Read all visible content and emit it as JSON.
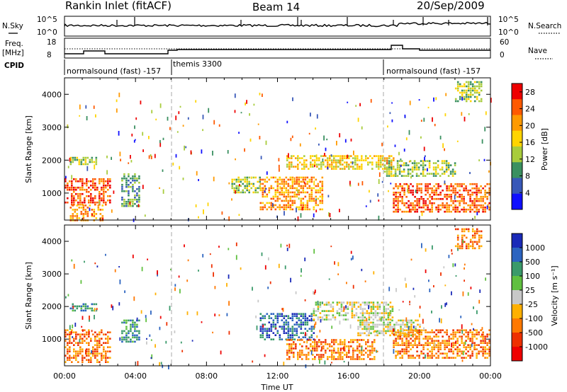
{
  "header": {
    "station": "Rankin Inlet (fitACF)",
    "beam": "Beam 14",
    "date": "20/Sep/2009"
  },
  "strips": {
    "nsky": {
      "label": "N.Sky",
      "ticks": [
        "10^5",
        "10^0"
      ]
    },
    "nsearch": {
      "label": "N.Search",
      "ticks": [
        "10^5",
        "10^0"
      ]
    },
    "freq": {
      "label_line1": "Freq.",
      "label_line2": "[MHz]",
      "ticks": [
        "18",
        "8"
      ]
    },
    "nave": {
      "label": "Nave",
      "ticks": [
        "60",
        "0"
      ]
    },
    "cpid": {
      "label": "CPID",
      "segments": [
        "normalsound (fast) -157",
        "themis 3300",
        "normalsound (fast) -157"
      ]
    }
  },
  "panels": {
    "power": {
      "ylabel": "Slant Range [km]",
      "cbar_label": "Power [dB]"
    },
    "velocity": {
      "ylabel": "Slant Range [km]",
      "cbar_label": "Velocity [m s⁻¹]"
    }
  },
  "xaxis": {
    "label": "Time UT"
  },
  "chart_data": [
    {
      "type": "heatmap",
      "title": "Power",
      "x_ticks": [
        "00:00",
        "04:00",
        "08:00",
        "12:00",
        "16:00",
        "20:00",
        "00:00"
      ],
      "y_ticks": [
        "1000",
        "2000",
        "3000",
        "4000"
      ],
      "ylabel": "Slant Range [km]",
      "xlabel": "Time UT",
      "xlim_hours": [
        0,
        24
      ],
      "ylim_km": [
        180,
        4500
      ],
      "colorbar": {
        "label": "Power [dB]",
        "ticks": [
          "4",
          "8",
          "12",
          "16",
          "20",
          "24",
          "28"
        ],
        "range": [
          0,
          30
        ],
        "colors": [
          "#1010ff",
          "#3858b8",
          "#3a9060",
          "#a8cc3c",
          "#ffd400",
          "#ff9a00",
          "#ff5a00",
          "#ee0000"
        ]
      },
      "echo_regions": [
        {
          "t": [
            0.0,
            2.6
          ],
          "r": [
            650,
            1450
          ],
          "value": 24
        },
        {
          "t": [
            0.3,
            2.2
          ],
          "r": [
            180,
            650
          ],
          "value": 20
        },
        {
          "t": [
            3.2,
            4.2
          ],
          "r": [
            600,
            1600
          ],
          "value": 8
        },
        {
          "t": [
            0.3,
            1.8
          ],
          "r": [
            1850,
            2100
          ],
          "value": 12
        },
        {
          "t": [
            9.4,
            11.0
          ],
          "r": [
            1000,
            1500
          ],
          "value": 14
        },
        {
          "t": [
            11.0,
            14.5
          ],
          "r": [
            500,
            1500
          ],
          "value": 22
        },
        {
          "t": [
            12.5,
            18.5
          ],
          "r": [
            1750,
            2150
          ],
          "value": 16
        },
        {
          "t": [
            18.0,
            22.0
          ],
          "r": [
            1500,
            2000
          ],
          "value": 14
        },
        {
          "t": [
            18.5,
            24.0
          ],
          "r": [
            400,
            1300
          ],
          "value": 24
        },
        {
          "t": [
            22.0,
            23.5
          ],
          "r": [
            3800,
            4400
          ],
          "value": 14
        }
      ]
    },
    {
      "type": "heatmap",
      "title": "Velocity",
      "x_ticks": [
        "00:00",
        "04:00",
        "08:00",
        "12:00",
        "16:00",
        "20:00",
        "00:00"
      ],
      "y_ticks": [
        "1000",
        "2000",
        "3000",
        "4000"
      ],
      "ylabel": "Slant Range [km]",
      "xlabel": "Time UT",
      "xlim_hours": [
        0,
        24
      ],
      "ylim_km": [
        180,
        4500
      ],
      "colorbar": {
        "label": "Velocity [m s⁻¹]",
        "ticks": [
          "1000",
          "500",
          "100",
          "25",
          "-25",
          "-100",
          "-500",
          "-1000"
        ],
        "colors": [
          "#1a2ab8",
          "#2c64c0",
          "#3a9a6a",
          "#60c040",
          "#c8c8c8",
          "#ffb000",
          "#ff7800",
          "#ee3000",
          "#ee0000"
        ]
      },
      "echo_regions": [
        {
          "t": [
            0.0,
            2.6
          ],
          "r": [
            300,
            1300
          ],
          "value": -250
        },
        {
          "t": [
            3.2,
            4.2
          ],
          "r": [
            900,
            1600
          ],
          "value": 100
        },
        {
          "t": [
            0.3,
            1.8
          ],
          "r": [
            1850,
            2100
          ],
          "value": 100
        },
        {
          "t": [
            11.0,
            14.0
          ],
          "r": [
            1000,
            1800
          ],
          "value": 700
        },
        {
          "t": [
            14.0,
            18.5
          ],
          "r": [
            1600,
            2150
          ],
          "value": 0
        },
        {
          "t": [
            16.5,
            20.0
          ],
          "r": [
            1100,
            1600
          ],
          "value": 0
        },
        {
          "t": [
            12.5,
            17.5
          ],
          "r": [
            400,
            1000
          ],
          "value": -250
        },
        {
          "t": [
            18.5,
            24.0
          ],
          "r": [
            400,
            1300
          ],
          "value": -400
        },
        {
          "t": [
            22.0,
            23.5
          ],
          "r": [
            3800,
            4400
          ],
          "value": -200
        }
      ]
    }
  ]
}
